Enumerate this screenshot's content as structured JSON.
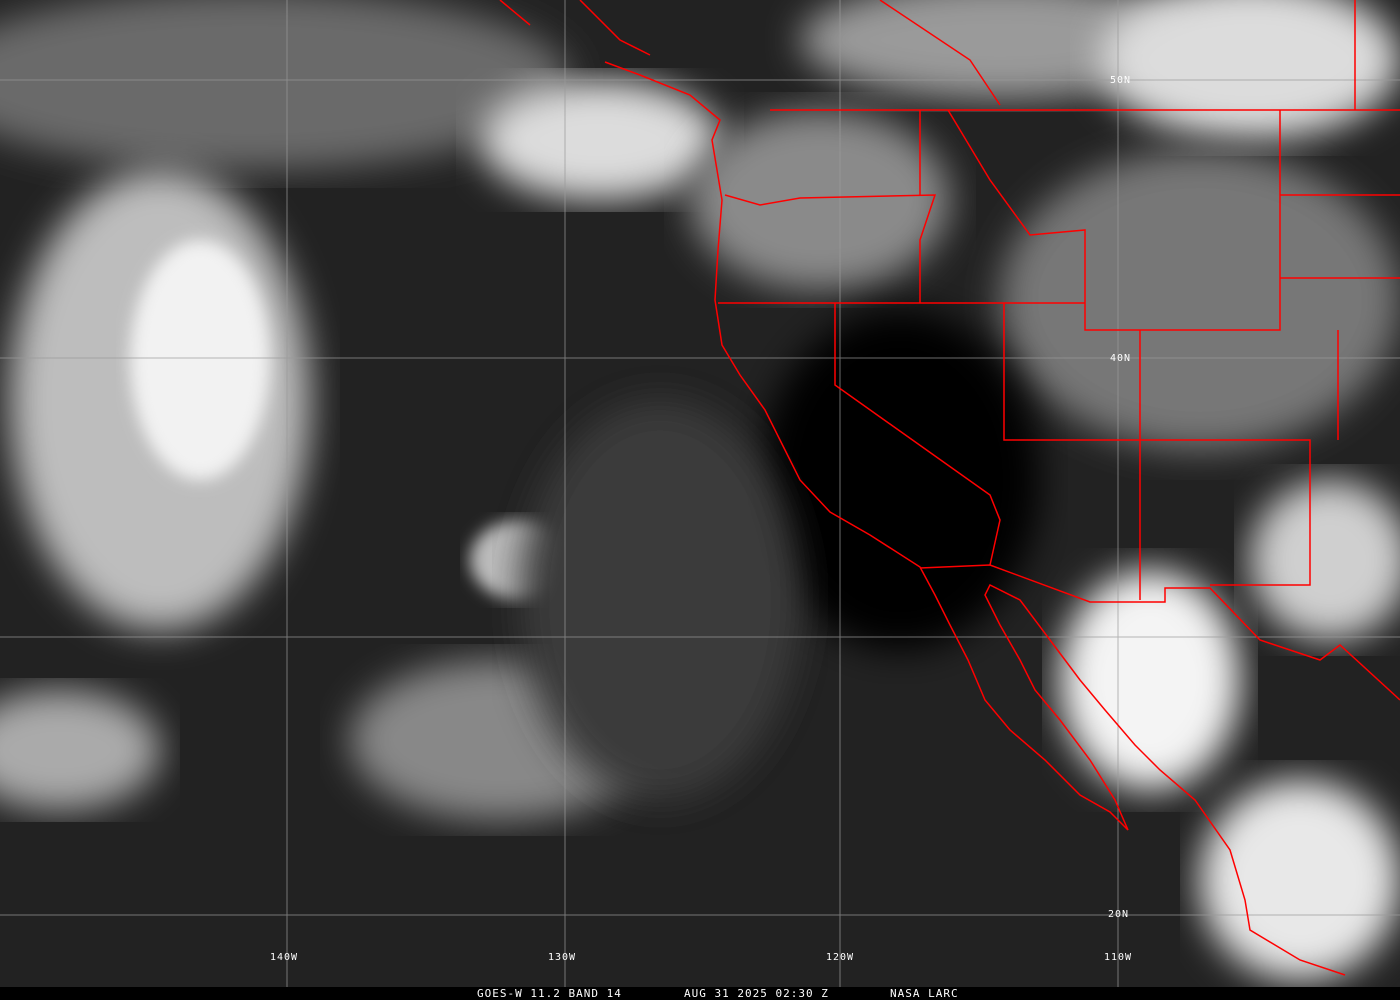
{
  "caption": {
    "satellite": "GOES-W 11.2 BAND 14",
    "datetime": "AUG 31 2025 02:30 Z",
    "source": "NASA LARC"
  },
  "grid": {
    "lon_labels": [
      "140W",
      "130W",
      "120W",
      "110W"
    ],
    "lat_labels": [
      "50N",
      "40N",
      "20N"
    ]
  },
  "colors": {
    "borders": "#ff0000",
    "grid": "#9a9a9a",
    "cloud": "#ffffff",
    "background": "#1a1a1a"
  }
}
